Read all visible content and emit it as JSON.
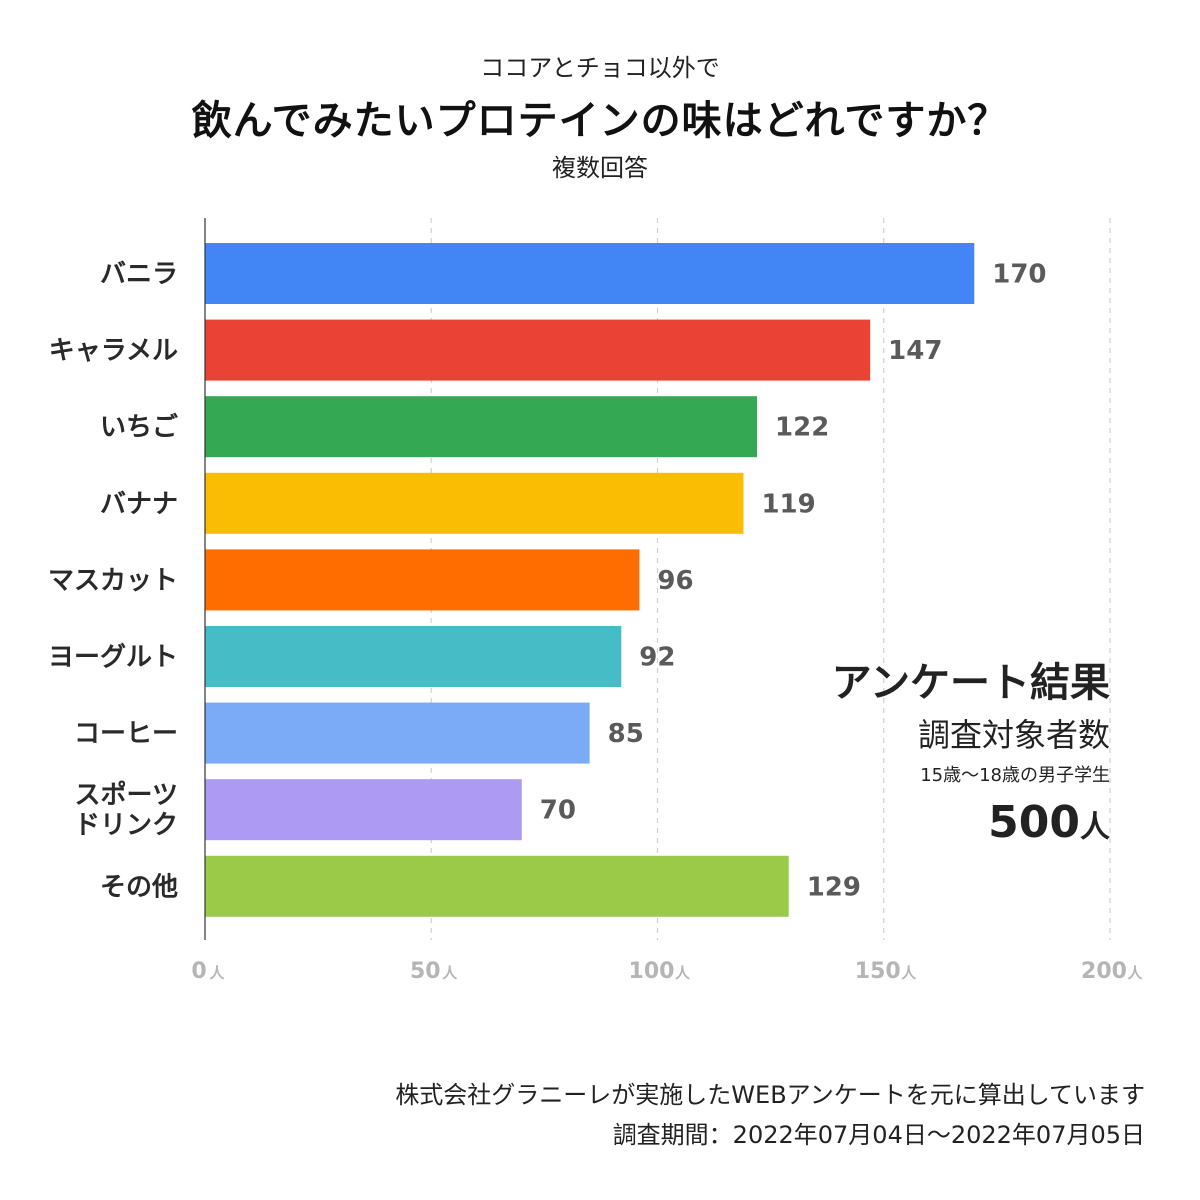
{
  "chart_data": {
    "type": "bar",
    "orientation": "horizontal",
    "title": "飲んでみたいプロテインの味はどれですか？",
    "subtitle_top": "ココアとチョコ以外で",
    "subtitle_bottom": "複数回答",
    "categories": [
      [
        "バニラ"
      ],
      [
        "キャラメル"
      ],
      [
        "いちご"
      ],
      [
        "バナナ"
      ],
      [
        "マスカット"
      ],
      [
        "ヨーグルト"
      ],
      [
        "コーヒー"
      ],
      [
        "スポーツ",
        "ドリンク"
      ],
      [
        "その他"
      ]
    ],
    "values": [
      170,
      147,
      122,
      119,
      96,
      92,
      85,
      70,
      129
    ],
    "colors": [
      "#4285F4",
      "#EA4335",
      "#34A853",
      "#FBBC04",
      "#FF6D01",
      "#46BDC6",
      "#7BAAF7",
      "#AC9AF3",
      "#9BCA48"
    ],
    "xlim": [
      0,
      200
    ],
    "xticks": [
      0,
      50,
      100,
      150,
      200
    ],
    "tick_unit": "人",
    "grid": true,
    "legend": "none"
  },
  "summary": {
    "title": "アンケート結果",
    "target_label": "調査対象者数",
    "target_desc": "15歳〜18歳の男子学生",
    "count": "500",
    "count_unit": "人"
  },
  "footer": {
    "line1": "株式会社グラニーレが実施したWEBアンケートを元に算出しています",
    "line2": "調査期間：2022年07月04日〜2022年07月05日"
  }
}
